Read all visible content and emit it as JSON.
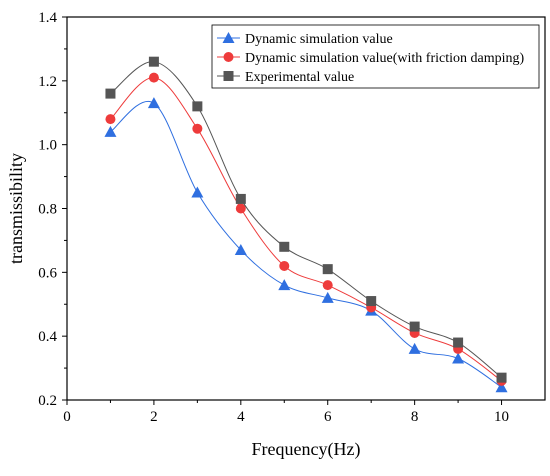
{
  "chart_data": {
    "type": "line",
    "title": "",
    "xlabel": "Frequency(Hz)",
    "ylabel": "transmissibility",
    "xlim": [
      0,
      11
    ],
    "ylim": [
      0.2,
      1.4
    ],
    "xticks": [
      0,
      2,
      4,
      6,
      8,
      10
    ],
    "yticks": [
      0.2,
      0.4,
      0.6,
      0.8,
      1.0,
      1.2,
      1.4
    ],
    "xtick_labels": [
      "0",
      "2",
      "4",
      "6",
      "8",
      "10"
    ],
    "ytick_labels": [
      "0.2",
      "0.4",
      "0.6",
      "0.8",
      "1.0",
      "1.2",
      "1.4"
    ],
    "grid": false,
    "legend_position": "top-right",
    "x": [
      1,
      2,
      3,
      4,
      5,
      6,
      7,
      8,
      9,
      10
    ],
    "series": [
      {
        "name": "Dynamic simulation value",
        "marker": "triangle",
        "color": "#2f6fe0",
        "values": [
          1.04,
          1.13,
          0.85,
          0.67,
          0.56,
          0.52,
          0.48,
          0.36,
          0.33,
          0.24
        ]
      },
      {
        "name": "Dynamic simulation value(with friction damping)",
        "marker": "circle",
        "color": "#ee3b3b",
        "values": [
          1.08,
          1.21,
          1.05,
          0.8,
          0.62,
          0.56,
          0.49,
          0.41,
          0.36,
          0.26
        ]
      },
      {
        "name": "Experimental value",
        "marker": "square",
        "color": "#555555",
        "values": [
          1.16,
          1.26,
          1.12,
          0.83,
          0.68,
          0.61,
          0.51,
          0.43,
          0.38,
          0.27
        ]
      }
    ]
  }
}
